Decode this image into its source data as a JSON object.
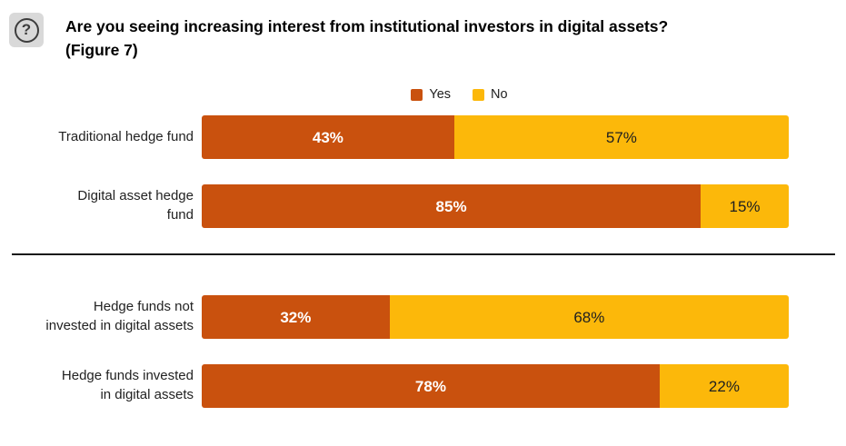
{
  "header": {
    "icon": "question-mark-icon",
    "title": "Are you seeing increasing interest from institutional investors in digital assets?\n(Figure 7)"
  },
  "chart_data": {
    "type": "bar",
    "orientation": "horizontal",
    "stacked": true,
    "units": "percent",
    "value_suffix": "%",
    "xlim": [
      0,
      100
    ],
    "grid": false,
    "legend_position": "top-center",
    "title": "Are you seeing increasing interest from institutional investors in digital assets? (Figure 7)",
    "series": [
      {
        "name": "Yes",
        "color": "#C9510E"
      },
      {
        "name": "No",
        "color": "#FCB80A"
      }
    ],
    "categories": [
      "Traditional hedge fund",
      "Digital asset hedge fund",
      "Hedge funds not invested in digital assets",
      "Hedge funds invested in digital assets"
    ],
    "groups": [
      {
        "rows": [
          {
            "label": "Traditional hedge fund",
            "yes": 43,
            "no": 57
          },
          {
            "label": "Digital asset hedge\nfund",
            "yes": 85,
            "no": 15
          }
        ]
      },
      {
        "rows": [
          {
            "label": "Hedge funds not\ninvested in digital assets",
            "yes": 32,
            "no": 68
          },
          {
            "label": "Hedge funds invested\nin digital assets",
            "yes": 78,
            "no": 22
          }
        ]
      }
    ]
  }
}
